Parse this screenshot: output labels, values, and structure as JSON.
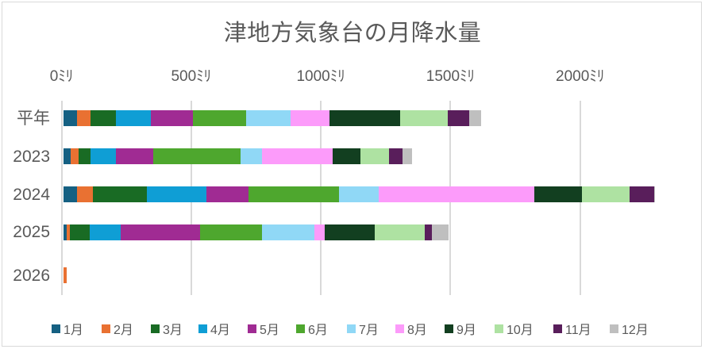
{
  "chart_data": {
    "type": "bar",
    "orientation": "horizontal-stacked",
    "title": "津地方気象台の月降水量",
    "x_tick_labels": [
      "0ﾐﾘ",
      "500ﾐﾘ",
      "1000ﾐﾘ",
      "1500ﾐﾘ",
      "2000ﾐﾘ"
    ],
    "x_tick_values": [
      0,
      500,
      1000,
      1500,
      2000
    ],
    "x_unit": "ﾐﾘ",
    "categories": [
      "平年",
      "2023",
      "2024",
      "2025",
      "2026"
    ],
    "series": [
      {
        "name": "1月",
        "color": "#156082",
        "values": [
          53,
          28,
          53,
          14,
          0
        ]
      },
      {
        "name": "2月",
        "color": "#E97132",
        "values": [
          54,
          31,
          61,
          12,
          15
        ]
      },
      {
        "name": "3月",
        "color": "#196B24",
        "values": [
          97,
          47,
          209,
          78,
          0
        ]
      },
      {
        "name": "4月",
        "color": "#0F9ED5",
        "values": [
          135,
          98,
          230,
          119,
          0
        ]
      },
      {
        "name": "5月",
        "color": "#A02B93",
        "values": [
          162,
          143,
          163,
          306,
          0
        ]
      },
      {
        "name": "6月",
        "color": "#4EA72E",
        "values": [
          205,
          337,
          347,
          239,
          0
        ]
      },
      {
        "name": "7月",
        "color": "#90D8F6",
        "values": [
          171,
          84,
          153,
          201,
          0
        ]
      },
      {
        "name": "8月",
        "color": "#FC9BFA",
        "values": [
          149,
          272,
          600,
          39,
          0
        ]
      },
      {
        "name": "9月",
        "color": "#123F20",
        "values": [
          273,
          108,
          184,
          194,
          0
        ]
      },
      {
        "name": "10月",
        "color": "#AEE2A2",
        "values": [
          186,
          109,
          184,
          193,
          0
        ]
      },
      {
        "name": "11月",
        "color": "#591E5B",
        "values": [
          80,
          53,
          96,
          26,
          0
        ]
      },
      {
        "name": "12月",
        "color": "#BFBFBF",
        "values": [
          48,
          35,
          4,
          66,
          0
        ]
      }
    ],
    "legend_position": "bottom",
    "gridlines": true
  }
}
